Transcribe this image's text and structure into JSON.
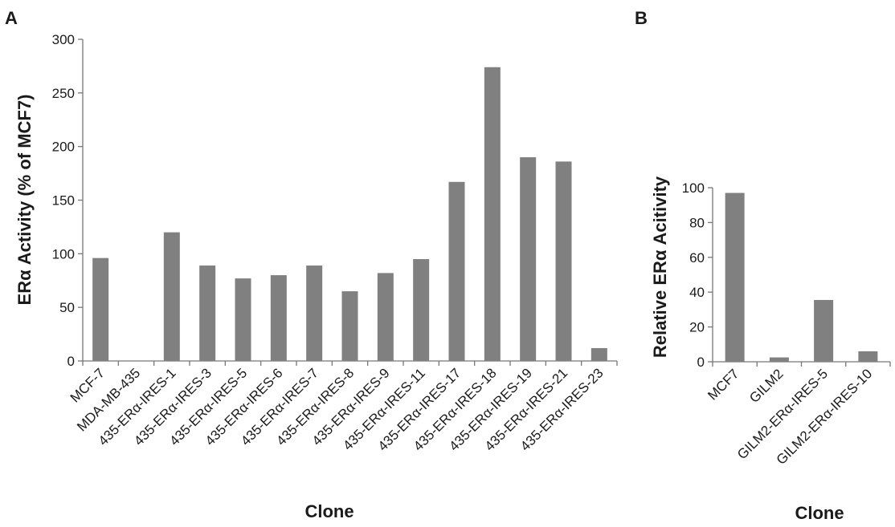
{
  "chart_data": [
    {
      "type": "bar",
      "panel": "A",
      "ylabel": "ERα Activity (% of MCF7)",
      "xlabel": "Clone",
      "ylim": [
        0,
        300
      ],
      "yticks": [
        "0",
        "50",
        "100",
        "150",
        "200",
        "250",
        "300"
      ],
      "categories": [
        "MCF-7",
        "MDA-MB-435",
        "435-ERα-IRES-1",
        "435-ERα-IRES-3",
        "435-ERα-IRES-5",
        "435-ERα-IRES-6",
        "435-ERα-IRES-7",
        "435-ERα-IRES-8",
        "435-ERα-IRES-9",
        "435-ERα-IRES-11",
        "435-ERα-IRES-17",
        "435-ERα-IRES-18",
        "435-ERα-IRES-19",
        "435-ERα-IRES-21",
        "435-ERα-IRES-23"
      ],
      "values": [
        96,
        0,
        120,
        89,
        77,
        80,
        89,
        65,
        82,
        95,
        167,
        274,
        190,
        186,
        12
      ],
      "bar_color": "#808080",
      "grid": false,
      "legend": "none"
    },
    {
      "type": "bar",
      "panel": "B",
      "ylabel": "Relative  ERα  Acitivity",
      "xlabel": "Clone",
      "ylim": [
        0,
        100
      ],
      "yticks": [
        "0",
        "20",
        "40",
        "60",
        "80",
        "100"
      ],
      "categories": [
        "MCF7",
        "GILM2",
        "GILM2-ERα-IRES-5",
        "GILM2-ERα-IRES-10"
      ],
      "values": [
        97,
        2.5,
        35.5,
        6
      ],
      "bar_color": "#808080",
      "grid": false,
      "legend": "none"
    }
  ]
}
